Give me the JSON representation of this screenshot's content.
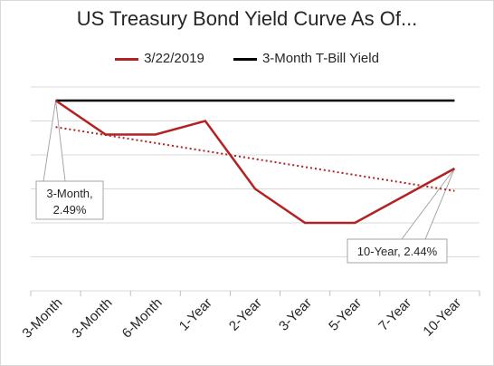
{
  "chart_data": {
    "type": "line",
    "title": "US Treasury Bond Yield Curve As Of...",
    "categories": [
      "3-Month",
      "3-Month",
      "6-Month",
      "1-Year",
      "2-Year",
      "3-Year",
      "5-Year",
      "7-Year",
      "10-Year"
    ],
    "series": [
      {
        "name": "3/22/2019",
        "color": "#b22222",
        "style": "solid",
        "values": [
          2.49,
          2.465,
          2.465,
          2.475,
          2.425,
          2.4,
          2.4,
          2.42,
          2.44
        ]
      },
      {
        "name": "3-Month T-Bill Yield",
        "color": "#000000",
        "style": "solid",
        "values": [
          2.49,
          2.49,
          2.49,
          2.49,
          2.49,
          2.49,
          2.49,
          2.49,
          2.49
        ]
      }
    ],
    "trendline": {
      "series": "3/22/2019",
      "color": "#b22222",
      "style": "dotted",
      "start": 2.4705,
      "end": 2.4235
    },
    "ylim": [
      2.35,
      2.5
    ],
    "y_gridlines": 6,
    "grid": true,
    "legend": "top",
    "annotations": [
      {
        "point": 0,
        "lines": [
          "3-Month,",
          "2.49%"
        ]
      },
      {
        "point": 8,
        "lines": [
          "10-Year, 2.44%"
        ]
      }
    ]
  }
}
